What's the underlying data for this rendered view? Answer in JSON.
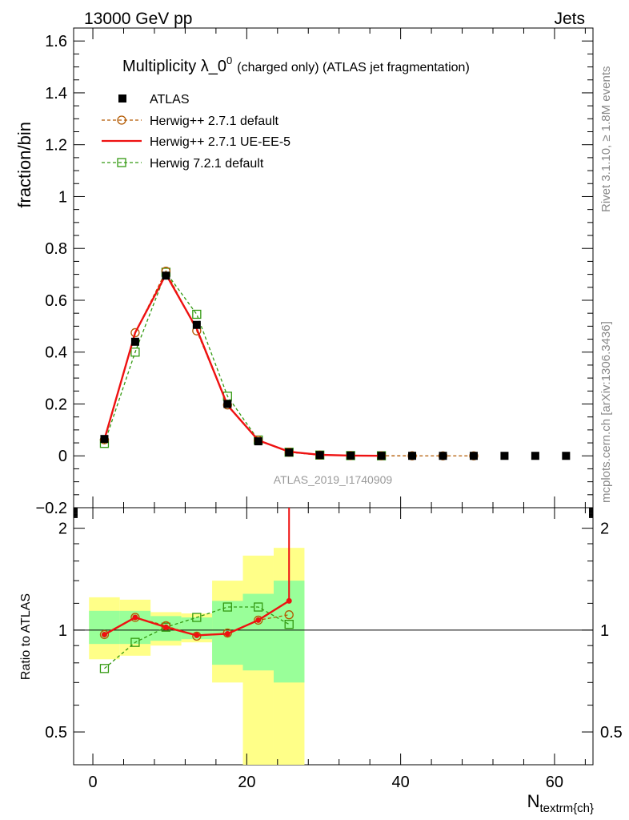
{
  "header": {
    "left": "13000 GeV pp",
    "right": "Jets"
  },
  "side_labels": {
    "rivet": "Rivet 3.1.10, ≥ 1.8M events",
    "mcplots": "mcplots.cern.ch [arXiv:1306.3436]"
  },
  "chart_data": {
    "type": "scatter",
    "title_main": "Multiplicity λ_0",
    "title_sup": "0",
    "title_rest": "(charged only) (ATLAS jet fragmentation)",
    "analysis_label": "ATLAS_2019_I1740909",
    "xlabel_main": "N",
    "xlabel_sub": "textrm{ch}",
    "ylabel": "fraction/bin",
    "ratio_ylabel": "Ratio to ATLAS",
    "xlim": [
      -2.5,
      65
    ],
    "ylim": [
      -0.2,
      1.65
    ],
    "ratio_ylim": [
      0.4,
      2.3
    ],
    "ratio_log": true,
    "x_ticks": [
      "0",
      "20",
      "40",
      "60"
    ],
    "y_ticks": [
      "−0.2",
      "0",
      "0.2",
      "0.4",
      "0.6",
      "0.8",
      "1",
      "1.2",
      "1.4",
      "1.6"
    ],
    "ratio_ticks": [
      "0.5",
      "1",
      "2"
    ],
    "data": {
      "name": "ATLAS",
      "x": [
        1.5,
        5.5,
        9.5,
        13.5,
        17.5,
        21.5,
        25.5,
        29.5,
        33.5,
        37.5,
        41.5,
        45.5,
        49.5,
        53.5,
        57.5,
        61.5
      ],
      "y": [
        0.065,
        0.44,
        0.695,
        0.505,
        0.2,
        0.056,
        0.013,
        0.003,
        0.001,
        0.0003,
        0.0001,
        0.0,
        0.0,
        0.0,
        0.0,
        0.0
      ]
    },
    "ratio_bands": {
      "x_edges": [
        -0.5,
        3.5,
        7.5,
        11.5,
        15.5,
        19.5,
        23.5,
        27.5
      ],
      "green_low": [
        0.91,
        0.91,
        0.93,
        0.94,
        0.79,
        0.76,
        0.7
      ],
      "green_high": [
        1.14,
        1.14,
        1.1,
        1.09,
        1.22,
        1.28,
        1.4
      ],
      "yellow_low": [
        0.82,
        0.84,
        0.9,
        0.92,
        0.7,
        0.38,
        0.35
      ],
      "yellow_high": [
        1.25,
        1.23,
        1.13,
        1.12,
        1.4,
        1.66,
        1.75
      ]
    },
    "series": [
      {
        "name": "Herwig++ 2.7.1 default",
        "color": "#b35900",
        "style": "dashed",
        "marker": "circle",
        "x": [
          1.5,
          5.5,
          9.5,
          13.5,
          17.5,
          21.5,
          25.5,
          29.5,
          33.5,
          37.5,
          41.5,
          45.5,
          49.5
        ],
        "y": [
          0.062,
          0.475,
          0.712,
          0.482,
          0.196,
          0.06,
          0.014,
          0.003,
          0.001,
          0.0003,
          0.0001,
          0.0,
          0.0
        ],
        "ratio_x": [
          1.5,
          5.5,
          9.5,
          13.5,
          17.5,
          21.5,
          25.5
        ],
        "ratio": [
          0.97,
          1.09,
          1.03,
          0.96,
          0.98,
          1.07,
          1.11
        ]
      },
      {
        "name": "Herwig++ 2.7.1 UE-EE-5",
        "color": "#ee1111",
        "style": "solid",
        "marker": "none",
        "x": [
          1.5,
          5.5,
          9.5,
          13.5,
          17.5,
          21.5,
          25.5,
          29.5,
          33.5,
          37.5
        ],
        "y": [
          0.063,
          0.475,
          0.7,
          0.49,
          0.195,
          0.06,
          0.016,
          0.004,
          0.001,
          0.0003
        ],
        "ratio_x": [
          1.5,
          5.5,
          9.5,
          13.5,
          17.5,
          21.5,
          25.5
        ],
        "ratio": [
          0.97,
          1.09,
          1.02,
          0.965,
          0.975,
          1.07,
          1.22
        ]
      },
      {
        "name": "Herwig 7.2.1 default",
        "color": "#339911",
        "style": "dashed",
        "marker": "square",
        "x": [
          1.5,
          5.5,
          9.5,
          13.5,
          17.5,
          21.5,
          25.5,
          29.5,
          33.5,
          37.5
        ],
        "y": [
          0.048,
          0.4,
          0.708,
          0.546,
          0.23,
          0.061,
          0.014,
          0.003,
          0.001,
          0.0003
        ],
        "ratio_x": [
          1.5,
          5.5,
          9.5,
          13.5,
          17.5,
          21.5,
          25.5
        ],
        "ratio": [
          0.77,
          0.92,
          1.02,
          1.09,
          1.17,
          1.17,
          1.04
        ]
      }
    ]
  }
}
